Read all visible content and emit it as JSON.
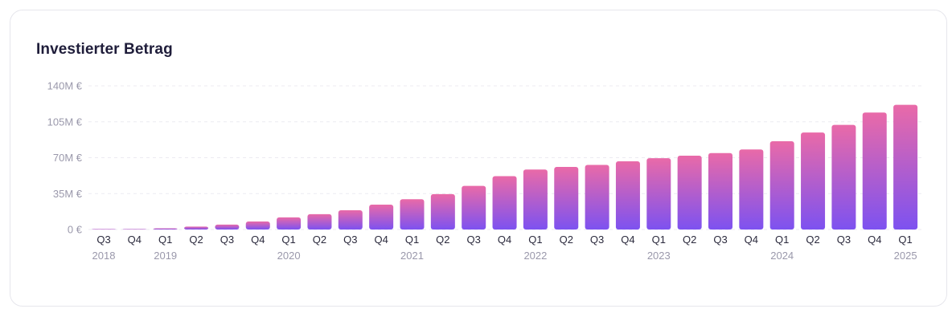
{
  "card": {
    "title": "Investierter Betrag"
  },
  "colors": {
    "bar_top": "#e96aa8",
    "bar_bottom": "#7d52f0"
  },
  "chart_data": {
    "type": "bar",
    "title": "Investierter Betrag",
    "xlabel": "",
    "ylabel": "",
    "ylim": [
      0,
      140
    ],
    "yticks": [
      {
        "value": 0,
        "label": "0 €"
      },
      {
        "value": 35,
        "label": "35M €"
      },
      {
        "value": 70,
        "label": "70M €"
      },
      {
        "value": 105,
        "label": "105M €"
      },
      {
        "value": 140,
        "label": "140M €"
      }
    ],
    "grid": true,
    "legend": "none",
    "categories": [
      {
        "quarter": "Q3",
        "year": "2018"
      },
      {
        "quarter": "Q4",
        "year": ""
      },
      {
        "quarter": "Q1",
        "year": "2019"
      },
      {
        "quarter": "Q2",
        "year": ""
      },
      {
        "quarter": "Q3",
        "year": ""
      },
      {
        "quarter": "Q4",
        "year": ""
      },
      {
        "quarter": "Q1",
        "year": "2020"
      },
      {
        "quarter": "Q2",
        "year": ""
      },
      {
        "quarter": "Q3",
        "year": ""
      },
      {
        "quarter": "Q4",
        "year": ""
      },
      {
        "quarter": "Q1",
        "year": "2021"
      },
      {
        "quarter": "Q2",
        "year": ""
      },
      {
        "quarter": "Q3",
        "year": ""
      },
      {
        "quarter": "Q4",
        "year": ""
      },
      {
        "quarter": "Q1",
        "year": "2022"
      },
      {
        "quarter": "Q2",
        "year": ""
      },
      {
        "quarter": "Q3",
        "year": ""
      },
      {
        "quarter": "Q4",
        "year": ""
      },
      {
        "quarter": "Q1",
        "year": "2023"
      },
      {
        "quarter": "Q2",
        "year": ""
      },
      {
        "quarter": "Q3",
        "year": ""
      },
      {
        "quarter": "Q4",
        "year": ""
      },
      {
        "quarter": "Q1",
        "year": "2024"
      },
      {
        "quarter": "Q2",
        "year": ""
      },
      {
        "quarter": "Q3",
        "year": ""
      },
      {
        "quarter": "Q4",
        "year": ""
      },
      {
        "quarter": "Q1",
        "year": "2025"
      }
    ],
    "values": [
      0,
      0.5,
      1.2,
      2.8,
      4.8,
      7.8,
      11.8,
      15.0,
      18.8,
      24.2,
      29.5,
      34.5,
      42.5,
      52.0,
      58.5,
      61.0,
      63.0,
      66.5,
      69.5,
      72.0,
      74.5,
      78.0,
      86.0,
      94.5,
      102.0,
      114.0,
      121.5
    ]
  }
}
